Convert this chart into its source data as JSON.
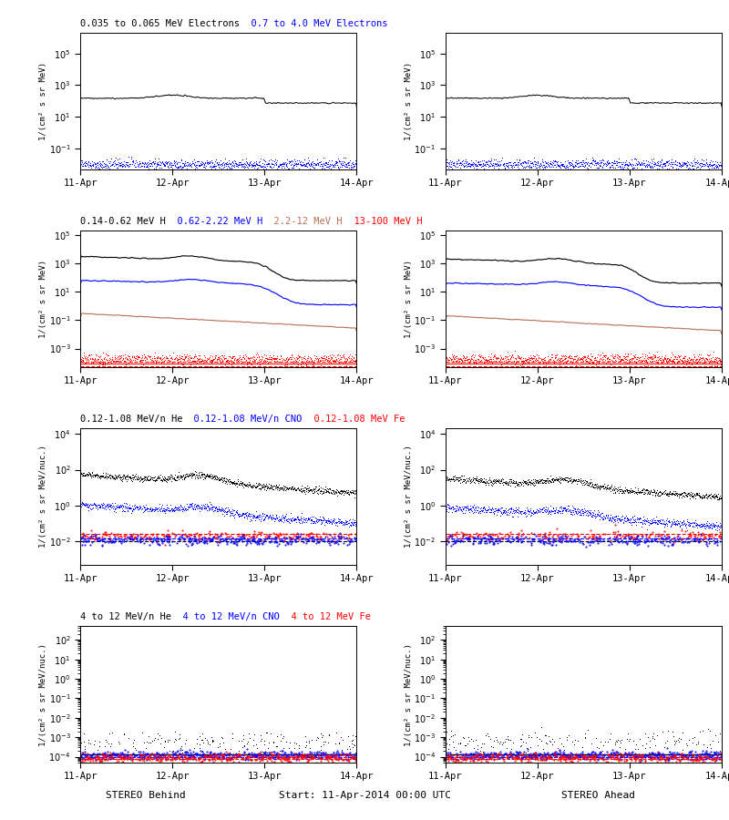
{
  "figure_size": [
    8.0,
    9.0
  ],
  "dpi": 100,
  "titles_row0": [
    {
      "text": "0.035 to 0.065 MeV Electrons",
      "color": "black"
    },
    {
      "text": "  0.7 to 4.0 MeV Electrons",
      "color": "blue"
    }
  ],
  "titles_row1": [
    {
      "text": "0.14-0.62 MeV H",
      "color": "black"
    },
    {
      "text": "  0.62-2.22 MeV H",
      "color": "blue"
    },
    {
      "text": "  2.2-12 MeV H",
      "color": "#b87050"
    },
    {
      "text": "  13-100 MeV H",
      "color": "red"
    }
  ],
  "titles_row2": [
    {
      "text": "0.12-1.08 MeV/n He",
      "color": "black"
    },
    {
      "text": "  0.12-1.08 MeV/n CNO",
      "color": "blue"
    },
    {
      "text": "  0.12-1.08 MeV Fe",
      "color": "red"
    }
  ],
  "titles_row3": [
    {
      "text": "4 to 12 MeV/n He",
      "color": "black"
    },
    {
      "text": "  4 to 12 MeV/n CNO",
      "color": "blue"
    },
    {
      "text": "  4 to 12 MeV Fe",
      "color": "red"
    }
  ],
  "bottom_left": "STEREO Behind",
  "bottom_center": "Start: 11-Apr-2014 00:00 UTC",
  "bottom_right": "STEREO Ahead",
  "x_tick_labels": [
    "11-Apr",
    "12-Apr",
    "13-Apr",
    "14-Apr"
  ]
}
